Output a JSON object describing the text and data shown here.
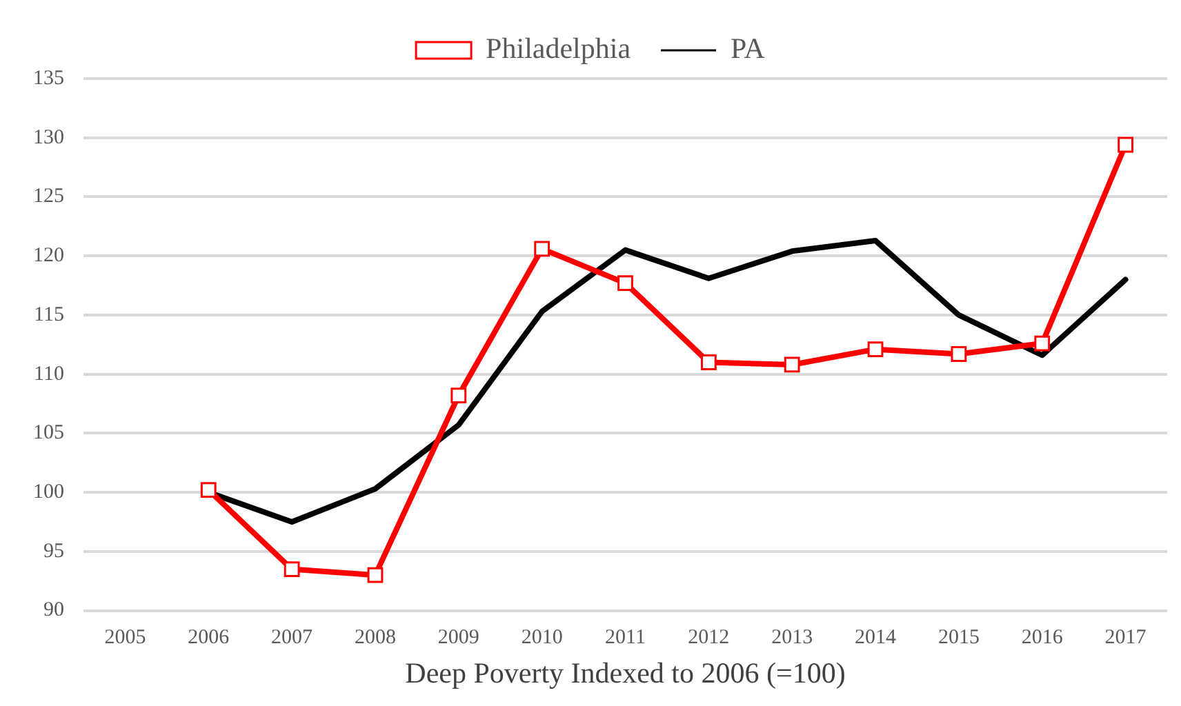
{
  "chart_data": {
    "type": "line",
    "xlabel": "Deep Poverty Indexed to 2006 (=100)",
    "categories": [
      "2005",
      "2006",
      "2007",
      "2008",
      "2009",
      "2010",
      "2011",
      "2012",
      "2013",
      "2014",
      "2015",
      "2016",
      "2017"
    ],
    "series": [
      {
        "name": "Philadelphia",
        "color": "#ff0000",
        "marker": "square",
        "values": [
          null,
          100.2,
          93.5,
          93,
          108.2,
          120.6,
          117.7,
          111,
          110.8,
          112.1,
          111.7,
          112.6,
          129.4
        ]
      },
      {
        "name": "PA",
        "color": "#000000",
        "marker": "none",
        "values": [
          null,
          100,
          97.5,
          100.3,
          105.7,
          115.3,
          120.5,
          118.1,
          120.4,
          121.3,
          115,
          111.6,
          118
        ]
      }
    ],
    "ylim": [
      90,
      135
    ],
    "yticks": [
      90,
      95,
      100,
      105,
      110,
      115,
      120,
      125,
      130,
      135
    ],
    "grid": "y",
    "legend": "top",
    "line_style": "solid"
  }
}
